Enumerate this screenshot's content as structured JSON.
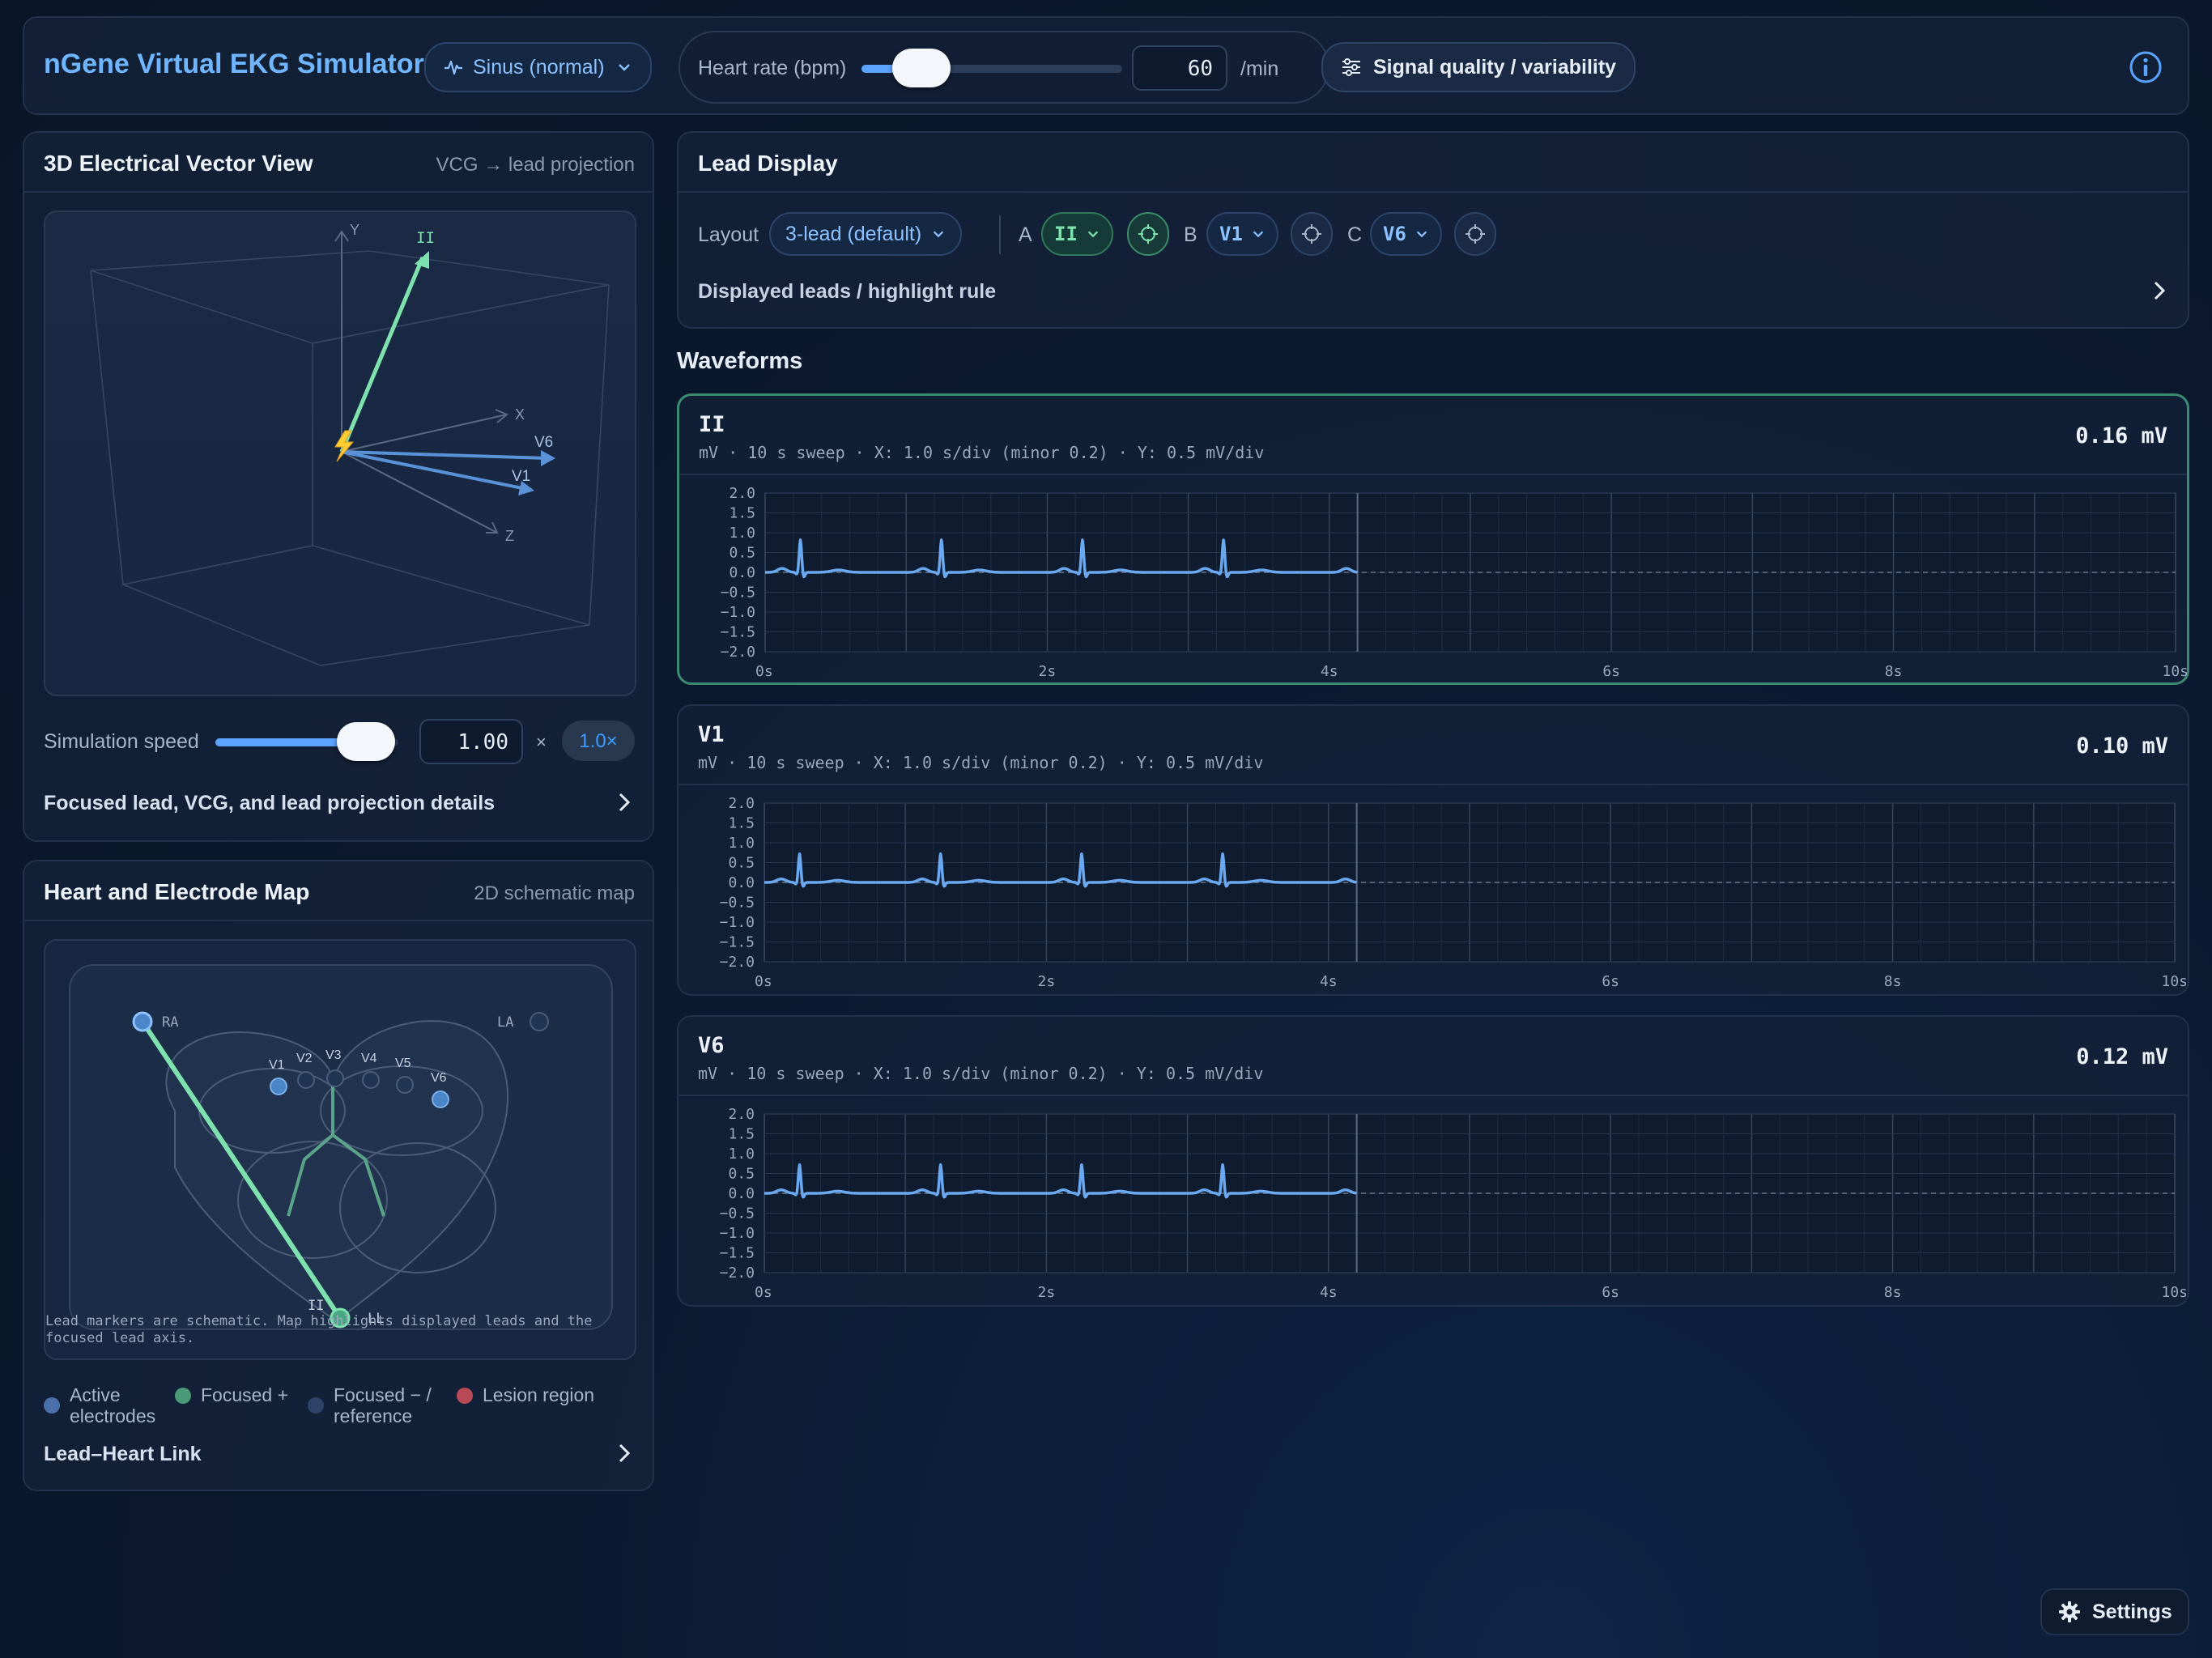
{
  "header": {
    "app_title": "nGene Virtual EKG Simulator",
    "rhythm": "Sinus (normal)",
    "heart_rate_label": "Heart rate (bpm)",
    "heart_rate_value": "60",
    "heart_rate_slider_fraction": 0.15,
    "heart_rate_unit": "/min",
    "signal_button": "Signal quality / variability"
  },
  "vcg": {
    "title": "3D Electrical Vector View",
    "subtitle": "VCG → lead projection",
    "axes": {
      "y": "Y",
      "x": "X",
      "z": "Z"
    },
    "vectors": [
      "II",
      "V6",
      "V1"
    ],
    "speed_label": "Simulation speed",
    "speed_value": "1.00",
    "speed_slider_fraction": 0.78,
    "speed_times": "×",
    "speed_badge": "1.0×",
    "details_link": "Focused lead, VCG, and lead projection details"
  },
  "map": {
    "title": "Heart and Electrode Map",
    "subtitle": "2D schematic map",
    "electrodes": {
      "ra": "RA",
      "la": "LA",
      "ll": "LL",
      "v1": "V1",
      "v2": "V2",
      "v3": "V3",
      "v4": "V4",
      "v5": "V5",
      "v6": "V6",
      "focused_lead": "II"
    },
    "note": "Lead markers are schematic. Map highlights displayed leads and the focused lead axis.",
    "legend": {
      "active": "Active electrodes",
      "focused_plus": "Focused +",
      "focused_minus": "Focused − / reference",
      "lesion": "Lesion region"
    },
    "link": "Lead–Heart Link"
  },
  "lead_display": {
    "title": "Lead Display",
    "layout_label": "Layout",
    "layout_value": "3-lead (default)",
    "slots": [
      {
        "letter": "A",
        "lead": "II"
      },
      {
        "letter": "B",
        "lead": "V1"
      },
      {
        "letter": "C",
        "lead": "V6"
      }
    ],
    "highlight_rule": "Displayed leads / highlight rule"
  },
  "waveforms": {
    "heading": "Waveforms",
    "y_ticks": [
      "2.0",
      "1.5",
      "1.0",
      "0.5",
      "0.0",
      "−0.5",
      "−1.0",
      "−1.5",
      "−2.0"
    ],
    "x_ticks": [
      "0s",
      "2s",
      "4s",
      "6s",
      "8s",
      "10s"
    ],
    "cards": [
      {
        "lead": "II",
        "meta": "mV · 10 s sweep · X: 1.0 s/div (minor 0.2) · Y: 0.5 mV/div",
        "value": "0.16 mV"
      },
      {
        "lead": "V1",
        "meta": "mV · 10 s sweep · X: 1.0 s/div (minor 0.2) · Y: 0.5 mV/div",
        "value": "0.10 mV"
      },
      {
        "lead": "V6",
        "meta": "mV · 10 s sweep · X: 1.0 s/div (minor 0.2) · Y: 0.5 mV/div",
        "value": "0.12 mV"
      }
    ]
  },
  "settings": {
    "label": "Settings"
  },
  "colors": {
    "accent": "#5aa4ff",
    "focused": "#7de2ae",
    "lesion": "#c0505a",
    "trace": "#6aa8f0"
  }
}
